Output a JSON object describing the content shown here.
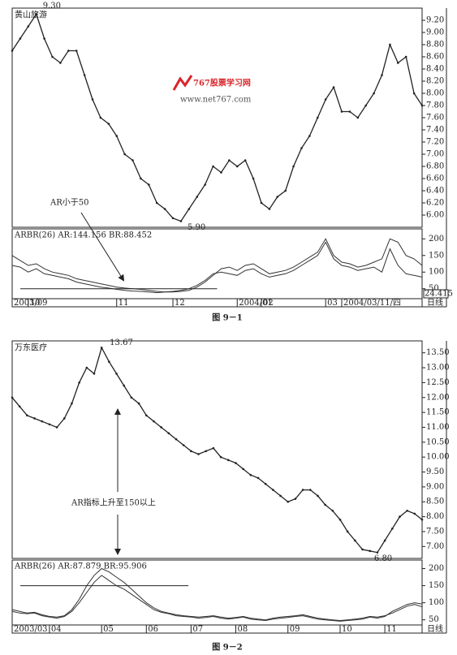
{
  "chart_data": [
    {
      "type": "line",
      "title": "黄山旅游",
      "caption": "图 9－1",
      "color": "#222",
      "high_label": "9.30",
      "low_label": "5.90",
      "annotation": "AR小于50",
      "watermark": [
        "767股票学习网",
        "www.net767.com"
      ],
      "period": "日线",
      "xlim": [
        0,
        51
      ],
      "xticks": [
        {
          "value": 0,
          "label": "2003/09"
        },
        {
          "value": 2,
          "label": "10"
        },
        {
          "value": 13,
          "label": "11"
        },
        {
          "value": 20,
          "label": "12"
        },
        {
          "value": 28,
          "label": "2004/01"
        },
        {
          "value": 31,
          "label": "02"
        },
        {
          "value": 39,
          "label": "03"
        },
        {
          "value": 41,
          "label": "2004/03/11/四"
        }
      ],
      "values": [
        8.7,
        8.9,
        9.1,
        9.3,
        8.9,
        8.6,
        8.5,
        8.7,
        8.7,
        8.3,
        7.9,
        7.6,
        7.5,
        7.3,
        7.0,
        6.9,
        6.6,
        6.5,
        6.2,
        6.1,
        5.95,
        5.9,
        6.1,
        6.3,
        6.5,
        6.8,
        6.7,
        6.9,
        6.8,
        6.9,
        6.6,
        6.2,
        6.1,
        6.3,
        6.4,
        6.8,
        7.1,
        7.3,
        7.6,
        7.9,
        8.1,
        7.7,
        7.7,
        7.6,
        7.8,
        8.0,
        8.3,
        8.8,
        8.5,
        8.6,
        8.0,
        7.8
      ],
      "ylim": [
        5.8,
        9.4
      ],
      "yticks": [
        {
          "value": 6,
          "label": "6.00"
        },
        {
          "value": 6.2,
          "label": "6.20"
        },
        {
          "value": 6.4,
          "label": "6.40"
        },
        {
          "value": 6.6,
          "label": "6.60"
        },
        {
          "value": 6.8,
          "label": "6.80"
        },
        {
          "value": 7,
          "label": "7.00"
        },
        {
          "value": 7.2,
          "label": "7.20"
        },
        {
          "value": 7.4,
          "label": "7.40"
        },
        {
          "value": 7.6,
          "label": "7.60"
        },
        {
          "value": 7.8,
          "label": "7.80"
        },
        {
          "value": 8,
          "label": "8.00"
        },
        {
          "value": 8.2,
          "label": "8.20"
        },
        {
          "value": 8.4,
          "label": "8.40"
        },
        {
          "value": 8.6,
          "label": "8.60"
        },
        {
          "value": 8.8,
          "label": "8.80"
        },
        {
          "value": 9,
          "label": "9.00"
        },
        {
          "value": 9.2,
          "label": "9.20"
        }
      ],
      "indicator": {
        "label": "ARBR(26) AR:144.156 BR:88.452",
        "readout": "24.415",
        "hline": 50,
        "ylim": [
          20,
          230
        ],
        "yticks": [
          50,
          100,
          150,
          200
        ],
        "ar": [
          150,
          135,
          120,
          125,
          110,
          100,
          95,
          90,
          80,
          75,
          70,
          65,
          60,
          55,
          52,
          50,
          48,
          45,
          42,
          40,
          40,
          42,
          45,
          55,
          70,
          90,
          110,
          115,
          105,
          120,
          125,
          110,
          95,
          100,
          105,
          115,
          130,
          145,
          160,
          200,
          150,
          130,
          125,
          115,
          120,
          130,
          140,
          200,
          190,
          150,
          140,
          120
        ],
        "br": [
          120,
          115,
          100,
          110,
          95,
          90,
          85,
          80,
          70,
          65,
          60,
          55,
          52,
          48,
          45,
          43,
          42,
          40,
          38,
          40,
          42,
          45,
          50,
          60,
          75,
          95,
          100,
          95,
          90,
          105,
          110,
          95,
          85,
          90,
          95,
          105,
          120,
          135,
          150,
          190,
          140,
          120,
          115,
          105,
          110,
          115,
          100,
          170,
          120,
          95,
          90,
          85
        ]
      }
    },
    {
      "type": "line",
      "title": "万东医疗",
      "caption": "图 9－2",
      "color": "#222",
      "high_label": "13.67",
      "low_label": "6.80",
      "annotation": "AR指标上升至150以上",
      "period": "日线",
      "xlim": [
        0,
        55
      ],
      "xticks": [
        {
          "value": 0,
          "label": "2003/03"
        },
        {
          "value": 5,
          "label": "04"
        },
        {
          "value": 12,
          "label": "05"
        },
        {
          "value": 18,
          "label": "06"
        },
        {
          "value": 24,
          "label": "07"
        },
        {
          "value": 30,
          "label": "08"
        },
        {
          "value": 37,
          "label": "09"
        },
        {
          "value": 44,
          "label": "10"
        },
        {
          "value": 50,
          "label": "11"
        }
      ],
      "values": [
        12.0,
        11.7,
        11.4,
        11.3,
        11.2,
        11.1,
        11.0,
        11.3,
        11.8,
        12.5,
        13.0,
        12.8,
        13.67,
        13.2,
        12.8,
        12.4,
        12.0,
        11.8,
        11.4,
        11.2,
        11.0,
        10.8,
        10.6,
        10.4,
        10.2,
        10.1,
        10.2,
        10.3,
        10.0,
        9.9,
        9.8,
        9.6,
        9.4,
        9.3,
        9.1,
        8.9,
        8.7,
        8.5,
        8.6,
        8.9,
        8.9,
        8.7,
        8.4,
        8.2,
        7.9,
        7.5,
        7.2,
        6.9,
        6.85,
        6.8,
        7.2,
        7.6,
        8.0,
        8.2,
        8.1,
        7.9
      ],
      "ylim": [
        6.6,
        13.9
      ],
      "yticks": [
        {
          "value": 7,
          "label": "7.00"
        },
        {
          "value": 7.5,
          "label": "7.50"
        },
        {
          "value": 8,
          "label": "8.00"
        },
        {
          "value": 8.5,
          "label": "8.50"
        },
        {
          "value": 9,
          "label": "9.00"
        },
        {
          "value": 9.5,
          "label": "9.50"
        },
        {
          "value": 10,
          "label": "10.00"
        },
        {
          "value": 10.5,
          "label": "10.50"
        },
        {
          "value": 11,
          "label": "11.00"
        },
        {
          "value": 11.5,
          "label": "11.50"
        },
        {
          "value": 12,
          "label": "12.00"
        },
        {
          "value": 12.5,
          "label": "12.50"
        },
        {
          "value": 13,
          "label": "13.00"
        },
        {
          "value": 13.5,
          "label": "13.50"
        }
      ],
      "indicator": {
        "label": "ARBR(26) AR:87.879 BR:95.906",
        "hline": 150,
        "ylim": [
          35,
          225
        ],
        "yticks": [
          50,
          100,
          150,
          200
        ],
        "ar": [
          80,
          75,
          70,
          72,
          65,
          60,
          58,
          62,
          80,
          110,
          150,
          180,
          200,
          190,
          175,
          160,
          140,
          120,
          100,
          85,
          75,
          70,
          65,
          62,
          60,
          58,
          60,
          62,
          58,
          55,
          57,
          60,
          55,
          52,
          50,
          55,
          58,
          60,
          62,
          65,
          60,
          55,
          52,
          50,
          48,
          50,
          52,
          55,
          60,
          58,
          62,
          70,
          80,
          90,
          95,
          88
        ],
        "br": [
          75,
          70,
          68,
          70,
          62,
          58,
          55,
          60,
          75,
          100,
          130,
          160,
          180,
          165,
          150,
          140,
          125,
          110,
          95,
          80,
          72,
          68,
          62,
          60,
          58,
          55,
          57,
          60,
          55,
          52,
          55,
          58,
          52,
          50,
          48,
          52,
          55,
          57,
          60,
          62,
          57,
          52,
          50,
          48,
          46,
          48,
          50,
          52,
          58,
          55,
          60,
          75,
          85,
          95,
          100,
          96
        ]
      }
    }
  ]
}
